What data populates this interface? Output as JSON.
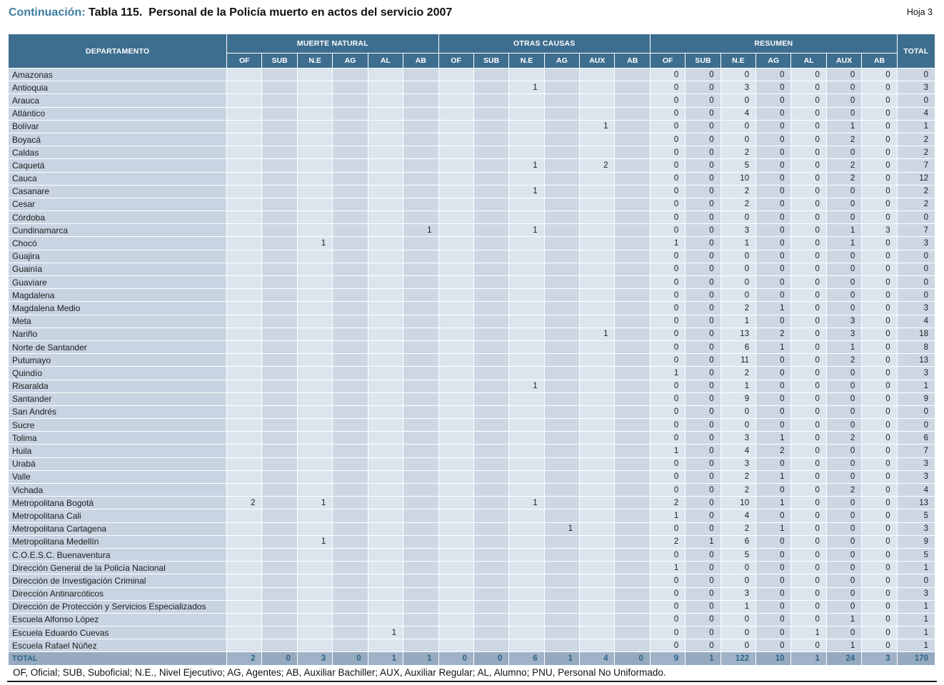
{
  "page": {
    "continuation_label": "Continuación: ",
    "title": "Tabla 115.  Personal de la Policía muerto en actos del servicio 2007",
    "sheet_label": "Hoja 3",
    "footnote": "OF, Oficial; SUB, Suboficial; N.E., Nivel Ejecutivo; AG, Agentes; AB, Auxiliar Bachiller; AUX, Auxiliar Regular; AL, Alumno; PNU, Personal No Uniformado."
  },
  "colors": {
    "header_bg": "#3e6e8f",
    "title_accent": "#3c7ca0",
    "dept_column": "#c8d4e1",
    "column_light": "#dce5ee",
    "column_dark": "#cdd7e4",
    "total_row_bg": "#97aabf",
    "total_row_text": "#2d6489"
  },
  "table": {
    "department_header": "DEPARTAMENTO",
    "total_header": "TOTAL",
    "groups": [
      {
        "label": "MUERTE NATURAL",
        "cols": [
          "OF",
          "SUB",
          "N.E",
          "AG",
          "AL",
          "AB"
        ]
      },
      {
        "label": "OTRAS CAUSAS",
        "cols": [
          "OF",
          "SUB",
          "N.E",
          "AG",
          "AUX",
          "AB"
        ]
      },
      {
        "label": "RESUMEN",
        "cols": [
          "OF",
          "SUB",
          "N.E",
          "AG",
          "AL",
          "AUX",
          "AB"
        ]
      }
    ],
    "rows": [
      {
        "name": "Amazonas",
        "mn": [
          "",
          "",
          "",
          "",
          "",
          ""
        ],
        "oc": [
          "",
          "",
          "",
          "",
          "",
          ""
        ],
        "res": [
          0,
          0,
          0,
          0,
          0,
          0,
          0
        ],
        "total": 0
      },
      {
        "name": "Antioquia",
        "mn": [
          "",
          "",
          "",
          "",
          "",
          ""
        ],
        "oc": [
          "",
          "",
          1,
          "",
          "",
          ""
        ],
        "res": [
          0,
          0,
          3,
          0,
          0,
          0,
          0
        ],
        "total": 3
      },
      {
        "name": "Arauca",
        "mn": [
          "",
          "",
          "",
          "",
          "",
          ""
        ],
        "oc": [
          "",
          "",
          "",
          "",
          "",
          ""
        ],
        "res": [
          0,
          0,
          0,
          0,
          0,
          0,
          0
        ],
        "total": 0
      },
      {
        "name": "Atlántico",
        "mn": [
          "",
          "",
          "",
          "",
          "",
          ""
        ],
        "oc": [
          "",
          "",
          "",
          "",
          "",
          ""
        ],
        "res": [
          0,
          0,
          4,
          0,
          0,
          0,
          0
        ],
        "total": 4
      },
      {
        "name": "Bolívar",
        "mn": [
          "",
          "",
          "",
          "",
          "",
          ""
        ],
        "oc": [
          "",
          "",
          "",
          "",
          1,
          ""
        ],
        "res": [
          0,
          0,
          0,
          0,
          0,
          1,
          0
        ],
        "total": 1
      },
      {
        "name": "Boyacá",
        "mn": [
          "",
          "",
          "",
          "",
          "",
          ""
        ],
        "oc": [
          "",
          "",
          "",
          "",
          "",
          ""
        ],
        "res": [
          0,
          0,
          0,
          0,
          0,
          2,
          0
        ],
        "total": 2
      },
      {
        "name": "Caldas",
        "mn": [
          "",
          "",
          "",
          "",
          "",
          ""
        ],
        "oc": [
          "",
          "",
          "",
          "",
          "",
          ""
        ],
        "res": [
          0,
          0,
          2,
          0,
          0,
          0,
          0
        ],
        "total": 2
      },
      {
        "name": "Caquetá",
        "mn": [
          "",
          "",
          "",
          "",
          "",
          ""
        ],
        "oc": [
          "",
          "",
          1,
          "",
          2,
          ""
        ],
        "res": [
          0,
          0,
          5,
          0,
          0,
          2,
          0
        ],
        "total": 7
      },
      {
        "name": "Cauca",
        "mn": [
          "",
          "",
          "",
          "",
          "",
          ""
        ],
        "oc": [
          "",
          "",
          "",
          "",
          "",
          ""
        ],
        "res": [
          0,
          0,
          10,
          0,
          0,
          2,
          0
        ],
        "total": 12
      },
      {
        "name": "Casanare",
        "mn": [
          "",
          "",
          "",
          "",
          "",
          ""
        ],
        "oc": [
          "",
          "",
          1,
          "",
          "",
          ""
        ],
        "res": [
          0,
          0,
          2,
          0,
          0,
          0,
          0
        ],
        "total": 2
      },
      {
        "name": "Cesar",
        "mn": [
          "",
          "",
          "",
          "",
          "",
          ""
        ],
        "oc": [
          "",
          "",
          "",
          "",
          "",
          ""
        ],
        "res": [
          0,
          0,
          2,
          0,
          0,
          0,
          0
        ],
        "total": 2
      },
      {
        "name": "Córdoba",
        "mn": [
          "",
          "",
          "",
          "",
          "",
          ""
        ],
        "oc": [
          "",
          "",
          "",
          "",
          "",
          ""
        ],
        "res": [
          0,
          0,
          0,
          0,
          0,
          0,
          0
        ],
        "total": 0
      },
      {
        "name": "Cundinamarca",
        "mn": [
          "",
          "",
          "",
          "",
          "",
          1
        ],
        "oc": [
          "",
          "",
          1,
          "",
          "",
          ""
        ],
        "res": [
          0,
          0,
          3,
          0,
          0,
          1,
          3
        ],
        "total": 7
      },
      {
        "name": "Chocó",
        "mn": [
          "",
          "",
          1,
          "",
          "",
          ""
        ],
        "oc": [
          "",
          "",
          "",
          "",
          "",
          ""
        ],
        "res": [
          1,
          0,
          1,
          0,
          0,
          1,
          0
        ],
        "total": 3
      },
      {
        "name": "Guajira",
        "mn": [
          "",
          "",
          "",
          "",
          "",
          ""
        ],
        "oc": [
          "",
          "",
          "",
          "",
          "",
          ""
        ],
        "res": [
          0,
          0,
          0,
          0,
          0,
          0,
          0
        ],
        "total": 0
      },
      {
        "name": "Guainía",
        "mn": [
          "",
          "",
          "",
          "",
          "",
          ""
        ],
        "oc": [
          "",
          "",
          "",
          "",
          "",
          ""
        ],
        "res": [
          0,
          0,
          0,
          0,
          0,
          0,
          0
        ],
        "total": 0
      },
      {
        "name": "Guaviare",
        "mn": [
          "",
          "",
          "",
          "",
          "",
          ""
        ],
        "oc": [
          "",
          "",
          "",
          "",
          "",
          ""
        ],
        "res": [
          0,
          0,
          0,
          0,
          0,
          0,
          0
        ],
        "total": 0
      },
      {
        "name": "Magdalena",
        "mn": [
          "",
          "",
          "",
          "",
          "",
          ""
        ],
        "oc": [
          "",
          "",
          "",
          "",
          "",
          ""
        ],
        "res": [
          0,
          0,
          0,
          0,
          0,
          0,
          0
        ],
        "total": 0
      },
      {
        "name": "Magdalena Medio",
        "mn": [
          "",
          "",
          "",
          "",
          "",
          ""
        ],
        "oc": [
          "",
          "",
          "",
          "",
          "",
          ""
        ],
        "res": [
          0,
          0,
          2,
          1,
          0,
          0,
          0
        ],
        "total": 3
      },
      {
        "name": "Meta",
        "mn": [
          "",
          "",
          "",
          "",
          "",
          ""
        ],
        "oc": [
          "",
          "",
          "",
          "",
          "",
          ""
        ],
        "res": [
          0,
          0,
          1,
          0,
          0,
          3,
          0
        ],
        "total": 4
      },
      {
        "name": "Nariño",
        "mn": [
          "",
          "",
          "",
          "",
          "",
          ""
        ],
        "oc": [
          "",
          "",
          "",
          "",
          1,
          ""
        ],
        "res": [
          0,
          0,
          13,
          2,
          0,
          3,
          0
        ],
        "total": 18
      },
      {
        "name": "Norte de Santander",
        "mn": [
          "",
          "",
          "",
          "",
          "",
          ""
        ],
        "oc": [
          "",
          "",
          "",
          "",
          "",
          ""
        ],
        "res": [
          0,
          0,
          6,
          1,
          0,
          1,
          0
        ],
        "total": 8
      },
      {
        "name": "Putumayo",
        "mn": [
          "",
          "",
          "",
          "",
          "",
          ""
        ],
        "oc": [
          "",
          "",
          "",
          "",
          "",
          ""
        ],
        "res": [
          0,
          0,
          11,
          0,
          0,
          2,
          0
        ],
        "total": 13
      },
      {
        "name": "Quindío",
        "mn": [
          "",
          "",
          "",
          "",
          "",
          ""
        ],
        "oc": [
          "",
          "",
          "",
          "",
          "",
          ""
        ],
        "res": [
          1,
          0,
          2,
          0,
          0,
          0,
          0
        ],
        "total": 3
      },
      {
        "name": "Risaralda",
        "mn": [
          "",
          "",
          "",
          "",
          "",
          ""
        ],
        "oc": [
          "",
          "",
          1,
          "",
          "",
          ""
        ],
        "res": [
          0,
          0,
          1,
          0,
          0,
          0,
          0
        ],
        "total": 1
      },
      {
        "name": "Santander",
        "mn": [
          "",
          "",
          "",
          "",
          "",
          ""
        ],
        "oc": [
          "",
          "",
          "",
          "",
          "",
          ""
        ],
        "res": [
          0,
          0,
          9,
          0,
          0,
          0,
          0
        ],
        "total": 9
      },
      {
        "name": "San Andrés",
        "mn": [
          "",
          "",
          "",
          "",
          "",
          ""
        ],
        "oc": [
          "",
          "",
          "",
          "",
          "",
          ""
        ],
        "res": [
          0,
          0,
          0,
          0,
          0,
          0,
          0
        ],
        "total": 0
      },
      {
        "name": "Sucre",
        "mn": [
          "",
          "",
          "",
          "",
          "",
          ""
        ],
        "oc": [
          "",
          "",
          "",
          "",
          "",
          ""
        ],
        "res": [
          0,
          0,
          0,
          0,
          0,
          0,
          0
        ],
        "total": 0
      },
      {
        "name": "Tolima",
        "mn": [
          "",
          "",
          "",
          "",
          "",
          ""
        ],
        "oc": [
          "",
          "",
          "",
          "",
          "",
          ""
        ],
        "res": [
          0,
          0,
          3,
          1,
          0,
          2,
          0
        ],
        "total": 6
      },
      {
        "name": "Huila",
        "mn": [
          "",
          "",
          "",
          "",
          "",
          ""
        ],
        "oc": [
          "",
          "",
          "",
          "",
          "",
          ""
        ],
        "res": [
          1,
          0,
          4,
          2,
          0,
          0,
          0
        ],
        "total": 7
      },
      {
        "name": "Urabá",
        "mn": [
          "",
          "",
          "",
          "",
          "",
          ""
        ],
        "oc": [
          "",
          "",
          "",
          "",
          "",
          ""
        ],
        "res": [
          0,
          0,
          3,
          0,
          0,
          0,
          0
        ],
        "total": 3
      },
      {
        "name": "Valle",
        "mn": [
          "",
          "",
          "",
          "",
          "",
          ""
        ],
        "oc": [
          "",
          "",
          "",
          "",
          "",
          ""
        ],
        "res": [
          0,
          0,
          2,
          1,
          0,
          0,
          0
        ],
        "total": 3
      },
      {
        "name": "Vichada",
        "mn": [
          "",
          "",
          "",
          "",
          "",
          ""
        ],
        "oc": [
          "",
          "",
          "",
          "",
          "",
          ""
        ],
        "res": [
          0,
          0,
          2,
          0,
          0,
          2,
          0
        ],
        "total": 4
      },
      {
        "name": "Metropolitana Bogotá",
        "mn": [
          2,
          "",
          1,
          "",
          "",
          ""
        ],
        "oc": [
          "",
          "",
          1,
          "",
          "",
          ""
        ],
        "res": [
          2,
          0,
          10,
          1,
          0,
          0,
          0
        ],
        "total": 13
      },
      {
        "name": "Metropolitana Cali",
        "mn": [
          "",
          "",
          "",
          "",
          "",
          ""
        ],
        "oc": [
          "",
          "",
          "",
          "",
          "",
          ""
        ],
        "res": [
          1,
          0,
          4,
          0,
          0,
          0,
          0
        ],
        "total": 5
      },
      {
        "name": "Metropolitana Cartagena",
        "mn": [
          "",
          "",
          "",
          "",
          "",
          ""
        ],
        "oc": [
          "",
          "",
          "",
          1,
          "",
          ""
        ],
        "res": [
          0,
          0,
          2,
          1,
          0,
          0,
          0
        ],
        "total": 3
      },
      {
        "name": "Metropolitana Medellín",
        "mn": [
          "",
          "",
          1,
          "",
          "",
          ""
        ],
        "oc": [
          "",
          "",
          "",
          "",
          "",
          ""
        ],
        "res": [
          2,
          1,
          6,
          0,
          0,
          0,
          0
        ],
        "total": 9
      },
      {
        "name": "C.O.E.S.C. Buenaventura",
        "mn": [
          "",
          "",
          "",
          "",
          "",
          ""
        ],
        "oc": [
          "",
          "",
          "",
          "",
          "",
          ""
        ],
        "res": [
          0,
          0,
          5,
          0,
          0,
          0,
          0
        ],
        "total": 5
      },
      {
        "name": "Dirección General de la Policía Nacional",
        "mn": [
          "",
          "",
          "",
          "",
          "",
          ""
        ],
        "oc": [
          "",
          "",
          "",
          "",
          "",
          ""
        ],
        "res": [
          1,
          0,
          0,
          0,
          0,
          0,
          0
        ],
        "total": 1
      },
      {
        "name": "Dirección de Investigación Criminal",
        "mn": [
          "",
          "",
          "",
          "",
          "",
          ""
        ],
        "oc": [
          "",
          "",
          "",
          "",
          "",
          ""
        ],
        "res": [
          0,
          0,
          0,
          0,
          0,
          0,
          0
        ],
        "total": 0
      },
      {
        "name": "Dirección Antinarcóticos",
        "mn": [
          "",
          "",
          "",
          "",
          "",
          ""
        ],
        "oc": [
          "",
          "",
          "",
          "",
          "",
          ""
        ],
        "res": [
          0,
          0,
          3,
          0,
          0,
          0,
          0
        ],
        "total": 3
      },
      {
        "name": "Dirección de Protección y Servicios Especializados",
        "mn": [
          "",
          "",
          "",
          "",
          "",
          ""
        ],
        "oc": [
          "",
          "",
          "",
          "",
          "",
          ""
        ],
        "res": [
          0,
          0,
          1,
          0,
          0,
          0,
          0
        ],
        "total": 1
      },
      {
        "name": "Escuela Alfonso López",
        "mn": [
          "",
          "",
          "",
          "",
          "",
          ""
        ],
        "oc": [
          "",
          "",
          "",
          "",
          "",
          ""
        ],
        "res": [
          0,
          0,
          0,
          0,
          0,
          1,
          0
        ],
        "total": 1
      },
      {
        "name": "Escuela Eduardo Cuevas",
        "mn": [
          "",
          "",
          "",
          "",
          1,
          ""
        ],
        "oc": [
          "",
          "",
          "",
          "",
          "",
          ""
        ],
        "res": [
          0,
          0,
          0,
          0,
          1,
          0,
          0
        ],
        "total": 1
      },
      {
        "name": "Escuela Rafael Núñez",
        "mn": [
          "",
          "",
          "",
          "",
          "",
          ""
        ],
        "oc": [
          "",
          "",
          "",
          "",
          "",
          ""
        ],
        "res": [
          0,
          0,
          0,
          0,
          0,
          1,
          0
        ],
        "total": 1
      }
    ],
    "total_row": {
      "label": "TOTAL",
      "mn": [
        2,
        0,
        3,
        0,
        1,
        1
      ],
      "oc": [
        0,
        0,
        6,
        1,
        4,
        0
      ],
      "res": [
        9,
        1,
        122,
        10,
        1,
        24,
        3
      ],
      "total": 170
    }
  }
}
